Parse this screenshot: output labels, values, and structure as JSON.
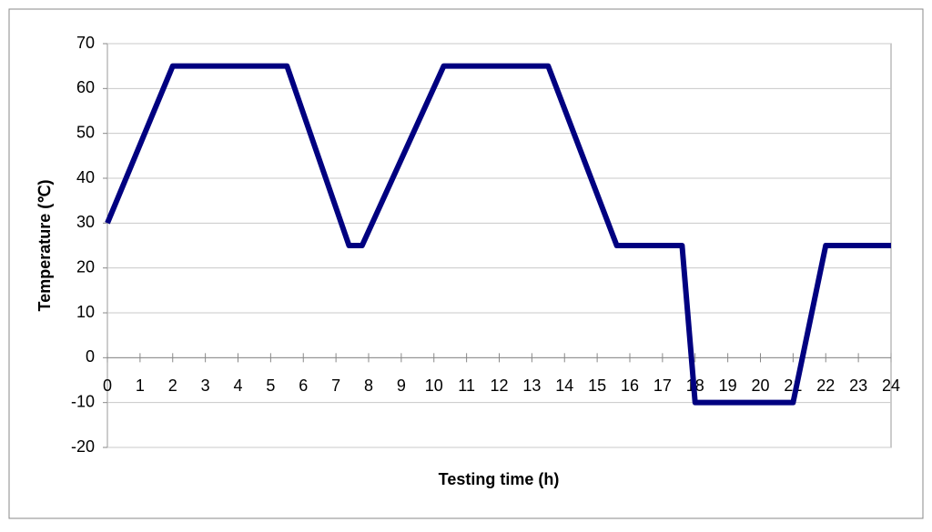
{
  "chart_data": {
    "type": "line",
    "xlabel": "Testing time (h)",
    "ylabel": "Temperature (℃)",
    "x": [
      0,
      2,
      5.5,
      7.4,
      7.8,
      10.3,
      13.5,
      15.6,
      17.6,
      18,
      21,
      22,
      24
    ],
    "series": [
      {
        "color": "#000080",
        "values": [
          30,
          65,
          65,
          25,
          25,
          65,
          65,
          25,
          25,
          -10,
          -10,
          25,
          25
        ]
      }
    ],
    "xlim": [
      0,
      24
    ],
    "xticks": [
      0,
      1,
      2,
      3,
      4,
      5,
      6,
      7,
      8,
      9,
      10,
      11,
      12,
      13,
      14,
      15,
      16,
      17,
      18,
      19,
      20,
      21,
      22,
      23,
      24
    ],
    "ylim": [
      -20,
      70
    ],
    "yticks": [
      -20,
      -10,
      0,
      10,
      20,
      30,
      40,
      50,
      60,
      70
    ],
    "grid": true
  }
}
